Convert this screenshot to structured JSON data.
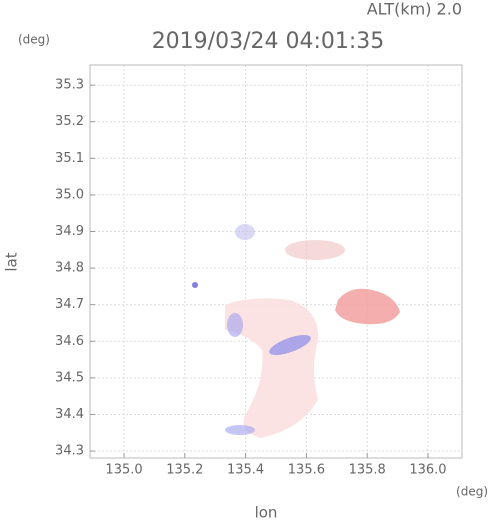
{
  "chart_data": {
    "type": "map",
    "title": "2019/03/24 04:01:35",
    "subtitle": "ALT(km) 2.0",
    "x_label": "lon",
    "y_label": "lat",
    "x_unit": "(deg)",
    "y_unit": "(deg)",
    "xlim": [
      134.888,
      136.112
    ],
    "ylim": [
      34.281,
      35.355
    ],
    "xticks": [
      {
        "value": 135.0,
        "label": "135.0"
      },
      135.2,
      135.4,
      135.6,
      135.8,
      {
        "value": 136.0,
        "label": "136.0"
      }
    ],
    "yticks": [
      34.3,
      34.4,
      34.5,
      34.6,
      34.7,
      34.8,
      34.9,
      {
        "value": 35.0,
        "label": "35.0"
      },
      35.1,
      35.2,
      35.3
    ],
    "grid": true
  }
}
